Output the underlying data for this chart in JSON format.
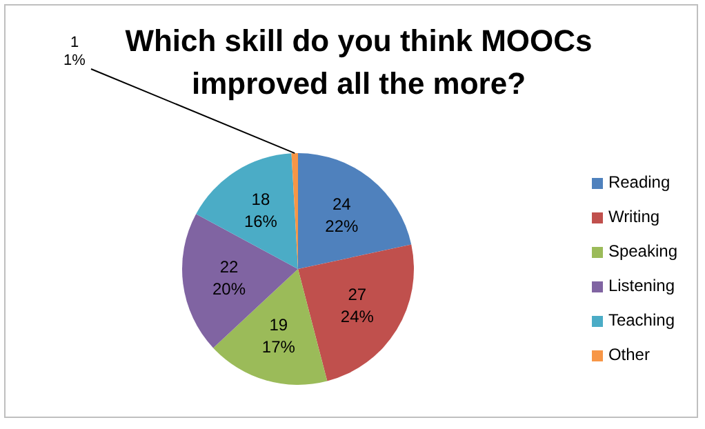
{
  "chart_data": {
    "type": "pie",
    "title": "Which skill do you think MOOCs improved all the more?",
    "categories": [
      "Reading",
      "Writing",
      "Speaking",
      "Listening",
      "Teaching",
      "Other"
    ],
    "values": [
      24,
      27,
      19,
      22,
      18,
      1
    ],
    "colors": [
      "#4f81bd",
      "#c0504d",
      "#9bbb59",
      "#8064a2",
      "#4bacc6",
      "#f79646"
    ],
    "value_labels": [
      "24\n22%",
      "27\n24%",
      "19\n17%",
      "22\n20%",
      "18\n16%",
      "1\n1%"
    ],
    "legend": "right"
  }
}
